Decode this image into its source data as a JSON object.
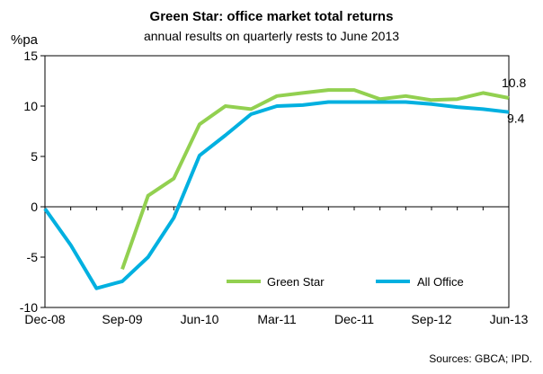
{
  "chart_data": {
    "type": "line",
    "title": "Green Star: office market total returns",
    "subtitle": "annual results on quarterly rests to June 2013",
    "ylabel": "%pa",
    "ylim": [
      -10,
      15
    ],
    "yticks": [
      "15",
      "10",
      "5",
      "0",
      "-5",
      "-10"
    ],
    "xtick_labels": [
      "Dec-08",
      "Sep-09",
      "Jun-10",
      "Mar-11",
      "Dec-11",
      "Sep-12",
      "Jun-13"
    ],
    "x": [
      "Dec-08",
      "Mar-09",
      "Jun-09",
      "Sep-09",
      "Dec-09",
      "Mar-10",
      "Jun-10",
      "Sep-10",
      "Dec-10",
      "Mar-11",
      "Jun-11",
      "Sep-11",
      "Dec-11",
      "Mar-12",
      "Jun-12",
      "Sep-12",
      "Dec-12",
      "Mar-13",
      "Jun-13"
    ],
    "series": [
      {
        "name": "Green Star",
        "color": "#92D050",
        "values": [
          null,
          null,
          null,
          -6.2,
          1.1,
          2.8,
          8.2,
          10.0,
          9.7,
          11.0,
          11.3,
          11.6,
          11.6,
          10.7,
          11.0,
          10.6,
          10.7,
          11.3,
          10.8
        ]
      },
      {
        "name": "All Office",
        "color": "#00B0E0",
        "values": [
          -0.2,
          -3.8,
          -8.1,
          -7.4,
          -5.0,
          -1.1,
          5.1,
          7.1,
          9.2,
          10.0,
          10.1,
          10.4,
          10.4,
          10.4,
          10.4,
          10.2,
          9.9,
          9.7,
          9.4
        ]
      }
    ],
    "end_labels": {
      "green": "10.8",
      "blue": "9.4"
    },
    "legend_position": "bottom-right",
    "grid": false,
    "source": "Sources: GBCA; IPD."
  }
}
